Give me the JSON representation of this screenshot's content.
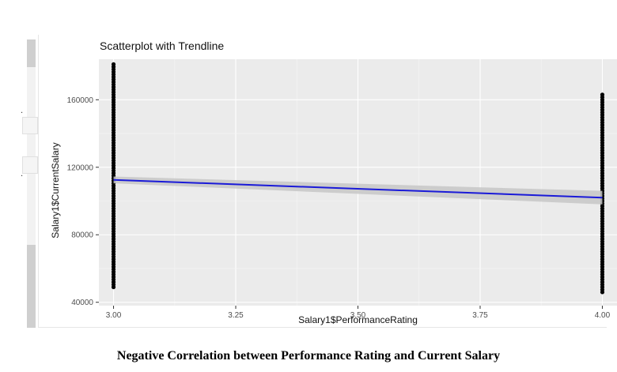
{
  "chart_data": {
    "type": "scatter",
    "title": "Scatterplot with Trendline",
    "xlabel": "Salary1$PerformanceRating",
    "ylabel": "Salary1$CurrentSalary",
    "xlim": [
      2.97,
      4.03
    ],
    "ylim": [
      38000,
      184000
    ],
    "x_ticks": [
      3.0,
      3.25,
      3.5,
      3.75,
      4.0
    ],
    "x_tick_labels": [
      "3.00",
      "3.25",
      "3.50",
      "3.75",
      "4.00"
    ],
    "y_ticks": [
      40000,
      80000,
      120000,
      160000
    ],
    "y_tick_labels": [
      "40000",
      "80000",
      "120000",
      "160000"
    ],
    "grid": true,
    "background_color": "#ebebeb",
    "point_color": "#000000",
    "trendline_color": "#1a1ad8",
    "confidence_band_color": "#c7c7c7",
    "series": [
      {
        "x": 3.0,
        "y_min": 49000,
        "y_max": 181000
      },
      {
        "x": 4.0,
        "y_min": 46000,
        "y_max": 163000
      }
    ],
    "trendline": {
      "x": [
        3.0,
        4.0
      ],
      "y": [
        112500,
        102000
      ],
      "ci_lower": [
        110500,
        98000
      ],
      "ci_upper": [
        114500,
        106000
      ]
    }
  },
  "caption": "Negative Correlation between Performance Rating and Current Salary"
}
